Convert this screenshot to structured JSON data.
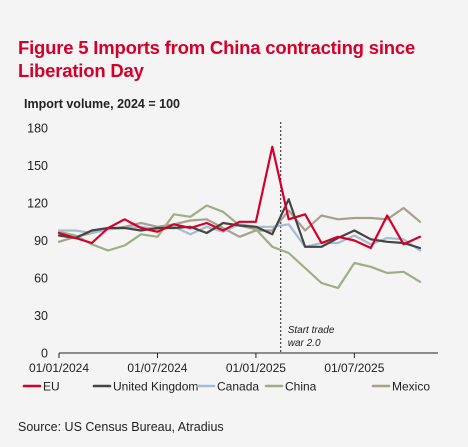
{
  "header": {
    "title": "Figure 5 Imports from China contracting since Liberation Day",
    "subtitle": "Import volume, 2024 = 100"
  },
  "footer": {
    "source": "Source: US Census Bureau, Atradius"
  },
  "chart_data": {
    "type": "line",
    "title": "Figure 5 Imports from China contracting since Liberation Day",
    "ylabel": "Import volume, 2024 = 100",
    "xlabel": "",
    "ylim": [
      0,
      180
    ],
    "yticks": [
      0,
      30,
      60,
      90,
      120,
      150,
      180
    ],
    "grid": false,
    "legend_position": "bottom",
    "x": [
      "2024-01",
      "2024-02",
      "2024-03",
      "2024-04",
      "2024-05",
      "2024-06",
      "2024-07",
      "2024-08",
      "2024-09",
      "2024-10",
      "2024-11",
      "2024-12",
      "2025-01",
      "2025-02",
      "2025-03",
      "2025-04",
      "2025-05",
      "2025-06",
      "2025-07",
      "2025-08",
      "2025-09",
      "2025-10",
      "2025-11"
    ],
    "xtick_labels": [
      {
        "label": "01/01/2024",
        "index": 0
      },
      {
        "label": "01/07/2024",
        "index": 6
      },
      {
        "label": "01/01/2025",
        "index": 12
      },
      {
        "label": "01/07/2025",
        "index": 18
      }
    ],
    "annotation": {
      "text_line1": "Start trade",
      "text_line2": "war 2.0",
      "index": 14
    },
    "series": [
      {
        "name": "EU",
        "color": "#d4002a",
        "width": 2.2,
        "values": [
          96,
          92,
          88,
          100,
          107,
          100,
          97,
          103,
          100,
          104,
          98,
          105,
          105,
          165,
          107,
          111,
          88,
          93,
          90,
          84,
          110,
          87,
          93
        ]
      },
      {
        "name": "United Kingdom",
        "color": "#444444",
        "width": 2.2,
        "values": [
          94,
          92,
          98,
          100,
          100,
          98,
          100,
          100,
          101,
          96,
          104,
          102,
          101,
          95,
          123,
          85,
          85,
          92,
          98,
          91,
          89,
          88,
          84
        ]
      },
      {
        "name": "Canada",
        "color": "#a3bdd1",
        "width": 2.2,
        "values": [
          98,
          98,
          96,
          99,
          100,
          101,
          99,
          101,
          95,
          101,
          97,
          103,
          101,
          101,
          103,
          85,
          88,
          88,
          94,
          87,
          92,
          91,
          82
        ]
      },
      {
        "name": "China",
        "color": "#9eae83",
        "width": 2.2,
        "values": [
          97,
          94,
          87,
          82,
          86,
          95,
          93,
          111,
          109,
          118,
          113,
          102,
          99,
          85,
          80,
          68,
          56,
          52,
          72,
          69,
          64,
          65,
          57
        ]
      },
      {
        "name": "Mexico",
        "color": "#a8a08e",
        "width": 2.2,
        "values": [
          89,
          93,
          96,
          99,
          101,
          104,
          101,
          103,
          106,
          107,
          100,
          93,
          98,
          98,
          114,
          98,
          110,
          107,
          108,
          108,
          107,
          116,
          105
        ]
      }
    ]
  }
}
